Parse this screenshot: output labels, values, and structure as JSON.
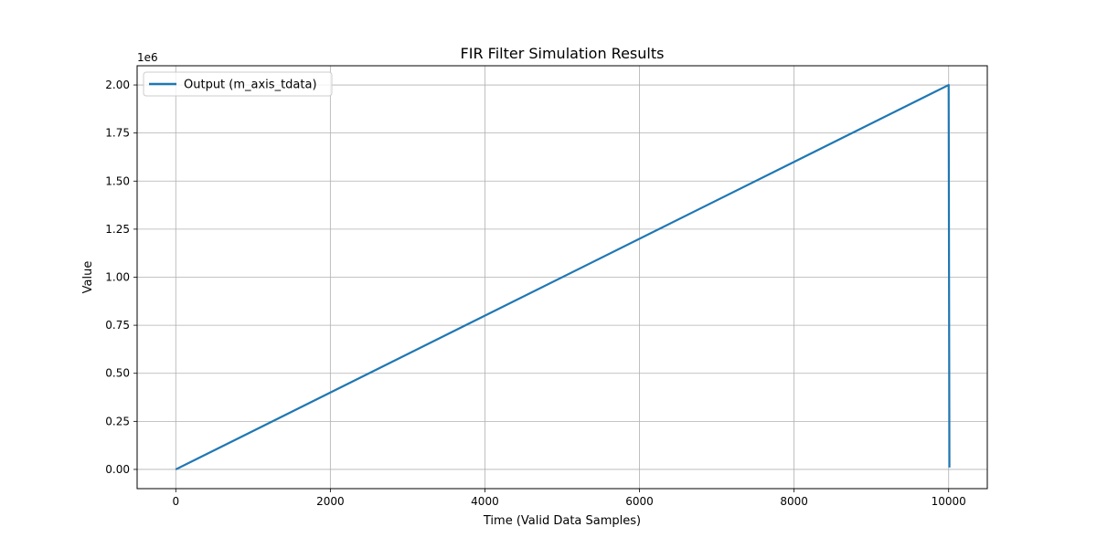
{
  "chart_data": {
    "type": "line",
    "title": "FIR Filter Simulation Results",
    "xlabel": "Time (Valid Data Samples)",
    "ylabel": "Value",
    "y_offset_label": "1e6",
    "xlim": [
      -500,
      10500
    ],
    "ylim": [
      -0.1,
      2.1
    ],
    "x_ticks": [
      0,
      2000,
      4000,
      6000,
      8000,
      10000
    ],
    "x_tick_labels": [
      "0",
      "2000",
      "4000",
      "6000",
      "8000",
      "10000"
    ],
    "y_ticks": [
      0.0,
      0.25,
      0.5,
      0.75,
      1.0,
      1.25,
      1.5,
      1.75,
      2.0
    ],
    "y_tick_labels": [
      "0.00",
      "0.25",
      "0.50",
      "0.75",
      "1.00",
      "1.25",
      "1.50",
      "1.75",
      "2.00"
    ],
    "grid": true,
    "legend_position": "top-left",
    "series": [
      {
        "name": "Output (m_axis_tdata)",
        "color": "#1f77b4",
        "x": [
          0,
          10000,
          10010
        ],
        "y": [
          0.0,
          2.0,
          0.01
        ]
      }
    ]
  }
}
